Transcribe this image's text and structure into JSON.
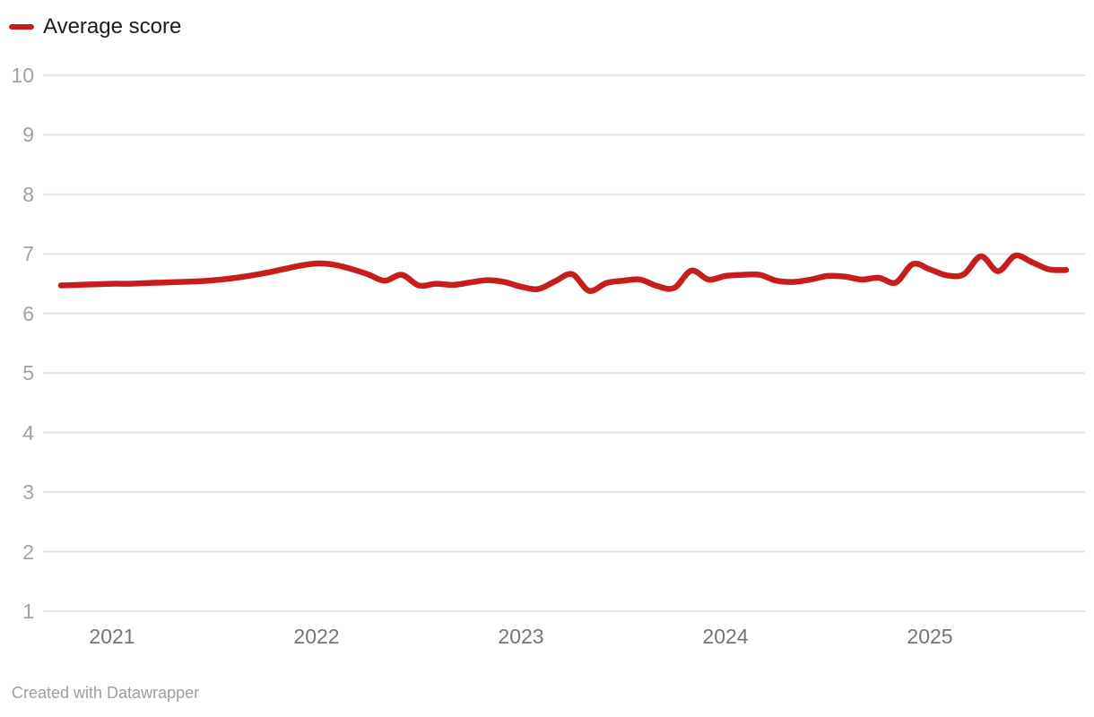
{
  "legend": {
    "label": "Average score"
  },
  "footer": {
    "text": "Created with Datawrapper"
  },
  "colors": {
    "accent": "#c71e1d",
    "grid": "#e4e4e4",
    "y_axis_text": "#a2a2a2",
    "x_axis_text": "#757575",
    "legend_text": "#1d1d1d",
    "footer_text": "#9e9e9e"
  },
  "chart_data": {
    "type": "line",
    "title": "",
    "legend_position": "top-left",
    "grid": "horizontal-only",
    "xlabel": "",
    "ylabel": "",
    "y_axis": {
      "min": 1,
      "max": 10,
      "ticks": [
        10,
        9,
        8,
        7,
        6,
        5,
        4,
        3,
        2,
        1
      ]
    },
    "x_axis": {
      "ticks": [
        "2021",
        "2022",
        "2023",
        "2024",
        "2025"
      ]
    },
    "series": [
      {
        "name": "Average score",
        "color": "#c71e1d",
        "start": "2020-10",
        "frequency": "monthly",
        "values": [
          6.47,
          6.48,
          6.49,
          6.5,
          6.5,
          6.51,
          6.52,
          6.53,
          6.54,
          6.56,
          6.59,
          6.63,
          6.68,
          6.74,
          6.8,
          6.84,
          6.82,
          6.75,
          6.66,
          6.55,
          6.65,
          6.47,
          6.5,
          6.48,
          6.52,
          6.56,
          6.53,
          6.45,
          6.41,
          6.54,
          6.66,
          6.38,
          6.51,
          6.55,
          6.57,
          6.46,
          6.43,
          6.72,
          6.57,
          6.63,
          6.65,
          6.65,
          6.55,
          6.53,
          6.57,
          6.63,
          6.62,
          6.57,
          6.6,
          6.52,
          6.83,
          6.74,
          6.64,
          6.66,
          6.96,
          6.71,
          6.97,
          6.86,
          6.74,
          6.73
        ]
      }
    ]
  }
}
